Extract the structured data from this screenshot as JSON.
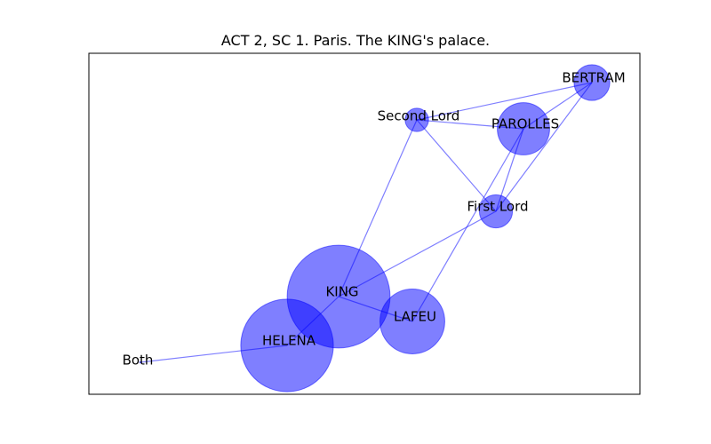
{
  "title": "ACT 2, SC 1. Paris. The KING's palace.",
  "colors": {
    "node": "#0000ff",
    "edge": "#0000ff",
    "frame": "#000000",
    "background": "#ffffff"
  },
  "nodes": [
    {
      "id": "KING",
      "label": "KING",
      "weight": 58
    },
    {
      "id": "HELENA",
      "label": "HELENA",
      "weight": 47
    },
    {
      "id": "LAFEU",
      "label": "LAFEU",
      "weight": 23
    },
    {
      "id": "PAROLLES",
      "label": "PAROLLES",
      "weight": 15
    },
    {
      "id": "BERTRAM",
      "label": "BERTRAM",
      "weight": 7
    },
    {
      "id": "First Lord",
      "label": "First Lord",
      "weight": 6
    },
    {
      "id": "Second Lord",
      "label": "Second Lord",
      "weight": 3
    },
    {
      "id": "Both",
      "label": "Both",
      "weight": 0
    }
  ],
  "edges": [
    [
      "KING",
      "HELENA"
    ],
    [
      "KING",
      "LAFEU"
    ],
    [
      "KING",
      "Second Lord"
    ],
    [
      "KING",
      "First Lord"
    ],
    [
      "HELENA",
      "Both"
    ],
    [
      "LAFEU",
      "PAROLLES"
    ],
    [
      "Second Lord",
      "BERTRAM"
    ],
    [
      "Second Lord",
      "PAROLLES"
    ],
    [
      "Second Lord",
      "First Lord"
    ],
    [
      "BERTRAM",
      "PAROLLES"
    ],
    [
      "BERTRAM",
      "First Lord"
    ],
    [
      "PAROLLES",
      "First Lord"
    ]
  ]
}
